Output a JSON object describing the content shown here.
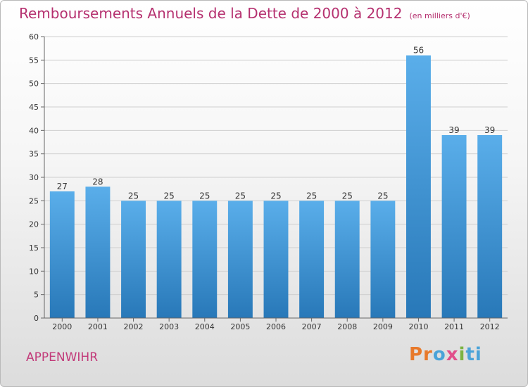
{
  "title": "Remboursements Annuels de la Dette de 2000 à 2012",
  "unit": "(en milliers d'€)",
  "commune": "APPENWIHR",
  "logo": {
    "text": "Proxiti",
    "parts": [
      "Pr",
      "o",
      "x",
      "i",
      "ti"
    ]
  },
  "chart_data": {
    "type": "bar",
    "categories": [
      "2000",
      "2001",
      "2002",
      "2003",
      "2004",
      "2005",
      "2006",
      "2007",
      "2008",
      "2009",
      "2010",
      "2011",
      "2012"
    ],
    "values": [
      27,
      28,
      25,
      25,
      25,
      25,
      25,
      25,
      25,
      25,
      56,
      39,
      39
    ],
    "data_labels": [
      "27",
      "28",
      "25",
      "25",
      "25",
      "25",
      "25",
      "25",
      "25",
      "25",
      "56",
      "39",
      "39"
    ],
    "ylim": [
      0,
      60
    ],
    "yticks": [
      0,
      5,
      10,
      15,
      20,
      25,
      30,
      35,
      40,
      45,
      50,
      55,
      60
    ],
    "grid": true,
    "bar_color_top": "#5aaeea",
    "bar_color_bottom": "#2878b8"
  }
}
